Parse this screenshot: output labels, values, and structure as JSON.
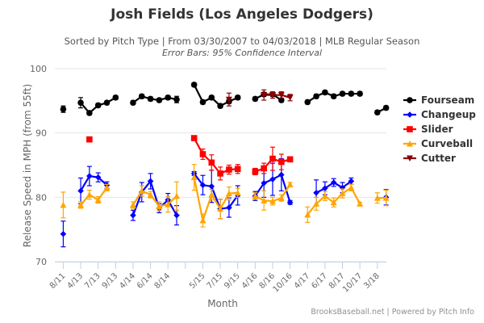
{
  "header": {
    "title": "Josh Fields (Los Angeles Dodgers)",
    "subtitle": "Sorted by Pitch Type | From 03/30/2007 to 04/03/2018 | MLB Regular Season",
    "subtitle2": "Error Bars: 95% Confidence Interval"
  },
  "credits": "BrooksBaseball.net | Powered by Pitch Info",
  "chart_data": {
    "type": "line",
    "title": "Josh Fields (Los Angeles Dodgers)",
    "xlabel": "Month",
    "ylabel": "Release Speed in MPH (from 55ft)",
    "ylim": [
      70,
      100
    ],
    "yticks": [
      70,
      80,
      90,
      100
    ],
    "grid": true,
    "legend_position": "right",
    "categories": [
      "8/11",
      "",
      "4/13",
      "6/13",
      "7/13",
      "8/13",
      "9/13",
      "",
      "4/14",
      "5/14",
      "6/14",
      "7/14",
      "8/14",
      "9/14",
      "",
      "4/15",
      "5/15",
      "6/15",
      "7/15",
      "8/15",
      "9/15",
      "",
      "4/16",
      "5/16",
      "8/16",
      "9/16",
      "10/16",
      "",
      "4/17",
      "5/17",
      "6/17",
      "7/17",
      "8/17",
      "9/17",
      "10/17",
      "",
      "3/18",
      "4/18"
    ],
    "tick_labels": [
      "8/11",
      "4/13",
      "7/13",
      "9/13",
      "4/14",
      "6/14",
      "8/14",
      "",
      "5/15",
      "7/15",
      "9/15",
      "4/16",
      "8/16",
      "10/16",
      "4/17",
      "6/17",
      "8/17",
      "10/17",
      "3/18"
    ],
    "series": [
      {
        "name": "Fourseam",
        "color": "#000000",
        "marker": "circle",
        "values": [
          93.7,
          null,
          94.7,
          93.1,
          94.3,
          94.7,
          95.5,
          null,
          94.7,
          95.7,
          95.3,
          95.1,
          95.5,
          95.2,
          null,
          97.5,
          94.8,
          95.5,
          94.2,
          94.9,
          95.5,
          null,
          95.3,
          96.0,
          96.0,
          95.1,
          null,
          null,
          94.8,
          95.7,
          96.3,
          95.7,
          96.1,
          96.1,
          96.1,
          null,
          93.2,
          93.9
        ],
        "err": [
          0.5,
          null,
          0.8,
          0.3,
          0.3,
          0.3,
          0.3,
          null,
          0.3,
          0.3,
          0.3,
          0.3,
          0.3,
          0.5,
          null,
          0.3,
          0.3,
          0.3,
          0.3,
          0.3,
          0.3,
          null,
          0.3,
          0.3,
          0.3,
          0.3,
          null,
          null,
          0.3,
          0.3,
          0.3,
          0.3,
          0.3,
          0.3,
          0.3,
          null,
          0.3,
          0.3
        ]
      },
      {
        "name": "Changeup",
        "color": "#0000ff",
        "marker": "diamond",
        "values": [
          74.3,
          null,
          81.0,
          83.3,
          83.1,
          81.9,
          null,
          null,
          77.2,
          80.8,
          82.5,
          78.3,
          79.6,
          77.2,
          null,
          83.7,
          81.9,
          81.7,
          78.2,
          78.4,
          80.3,
          null,
          80.2,
          82.2,
          82.8,
          83.5,
          79.2,
          null,
          null,
          80.7,
          81.4,
          82.3,
          81.5,
          82.5,
          null,
          null,
          null,
          80.0
        ],
        "err": [
          2.0,
          null,
          2.0,
          1.5,
          0.7,
          0.5,
          null,
          null,
          0.8,
          1.5,
          1.2,
          0.7,
          1.0,
          1.5,
          null,
          0.3,
          1.5,
          2.5,
          1.5,
          1.5,
          1.5,
          null,
          0.7,
          2.2,
          2.5,
          2.5,
          0.3,
          null,
          null,
          2.0,
          1.0,
          0.6,
          0.8,
          0.5,
          null,
          null,
          null,
          1.2
        ]
      },
      {
        "name": "Slider",
        "color": "#ff0000",
        "marker": "square",
        "values": [
          null,
          null,
          null,
          89.0,
          null,
          null,
          null,
          null,
          null,
          null,
          null,
          null,
          null,
          null,
          null,
          89.2,
          86.7,
          85.4,
          83.7,
          84.3,
          84.4,
          null,
          84.0,
          84.5,
          86.0,
          85.5,
          85.9,
          null,
          null,
          null,
          null,
          null,
          null,
          null,
          null,
          null,
          null,
          null
        ],
        "err": [
          null,
          null,
          null,
          0.2,
          null,
          null,
          null,
          null,
          null,
          null,
          null,
          null,
          null,
          null,
          null,
          0.2,
          0.8,
          1.2,
          1.0,
          0.7,
          0.7,
          null,
          0.5,
          0.8,
          1.8,
          1.2,
          0.3,
          null,
          null,
          null,
          null,
          null,
          null,
          null,
          null,
          null,
          null,
          null
        ]
      },
      {
        "name": "Curveball",
        "color": "#ffa500",
        "marker": "triangle",
        "values": [
          78.8,
          null,
          78.8,
          80.4,
          79.6,
          81.5,
          null,
          null,
          78.8,
          81.0,
          80.4,
          78.6,
          78.9,
          80.2,
          null,
          83.1,
          76.4,
          80.4,
          78.2,
          80.6,
          80.7,
          null,
          80.2,
          79.5,
          79.4,
          79.9,
          82.0,
          null,
          77.3,
          79.0,
          80.2,
          79.2,
          80.6,
          81.5,
          79.0,
          null,
          79.9,
          79.9
        ],
        "err": [
          2.0,
          null,
          0.5,
          0.7,
          0.5,
          0.5,
          null,
          null,
          0.5,
          0.8,
          0.5,
          0.7,
          1.2,
          2.2,
          null,
          2.0,
          1.0,
          0.8,
          1.5,
          1.0,
          0.7,
          null,
          0.5,
          1.5,
          0.6,
          0.5,
          0.3,
          null,
          1.2,
          1.0,
          0.7,
          0.7,
          0.7,
          0.5,
          0.2,
          null,
          0.8,
          1.2
        ]
      },
      {
        "name": "Cutter",
        "color": "#8b0000",
        "marker": "triangle-down",
        "values": [
          null,
          null,
          null,
          null,
          null,
          null,
          null,
          null,
          null,
          null,
          null,
          null,
          null,
          null,
          null,
          null,
          null,
          null,
          null,
          95.2,
          null,
          null,
          null,
          95.9,
          95.9,
          95.9,
          95.5,
          null,
          null,
          null,
          null,
          null,
          null,
          null,
          null,
          null,
          null,
          null
        ],
        "err": [
          null,
          null,
          null,
          null,
          null,
          null,
          null,
          null,
          null,
          null,
          null,
          null,
          null,
          null,
          null,
          null,
          null,
          null,
          null,
          1.0,
          null,
          null,
          null,
          0.8,
          0.5,
          0.5,
          0.5,
          null,
          null,
          null,
          null,
          null,
          null,
          null,
          null,
          null,
          null,
          null
        ]
      }
    ]
  }
}
